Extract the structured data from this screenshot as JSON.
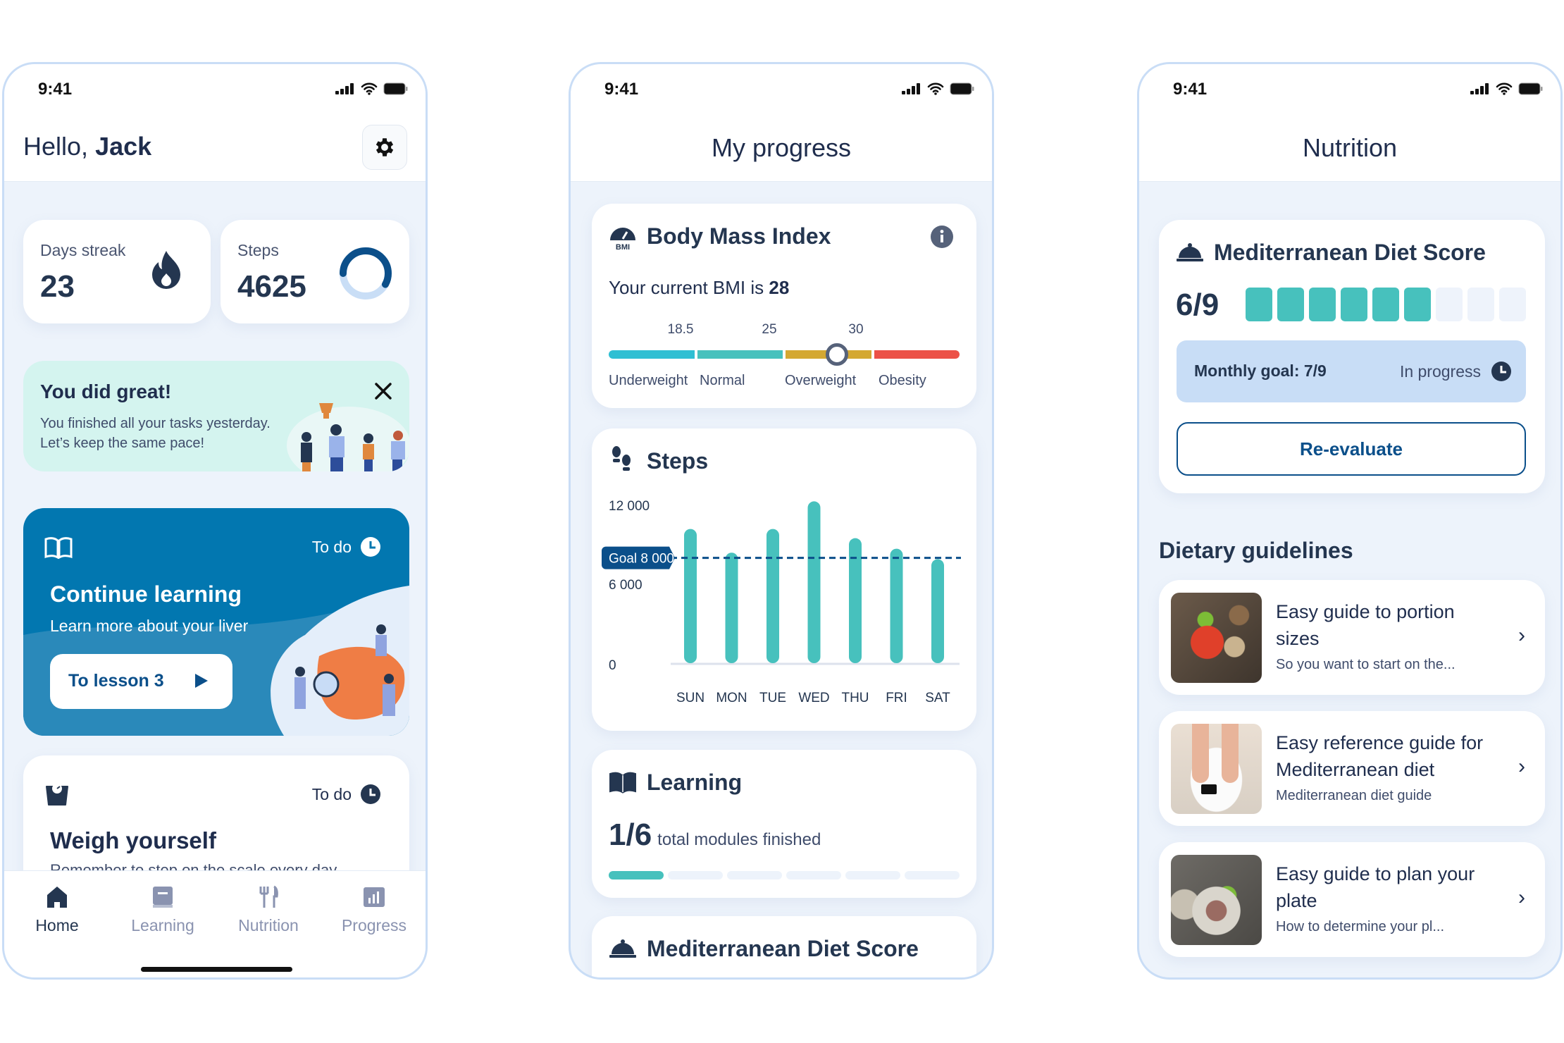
{
  "status_bar": {
    "time": "9:41"
  },
  "colors": {
    "primary": "#0b4f8a",
    "teal": "#47c1bd",
    "navy": "#243650",
    "learning_card": "#0277b0",
    "banner": "#d4f4ef"
  },
  "home": {
    "greeting": "Hello,",
    "name": "Jack",
    "settings_icon": "gear-icon",
    "streak": {
      "label": "Days streak",
      "value": "23",
      "icon": "flame-icon"
    },
    "steps": {
      "label": "Steps",
      "value": "4625",
      "progress": 0.58
    },
    "banner": {
      "title": "You did great!",
      "line1": "You finished all your tasks yesterday.",
      "line2": "Let’s keep the same pace!"
    },
    "learning_card": {
      "status": "To do",
      "title": "Continue learning",
      "subtitle": "Learn more about your liver",
      "button": "To lesson 3"
    },
    "weigh_card": {
      "status": "To do",
      "title": "Weigh yourself",
      "subtitle": "Remember to step on the scale every day"
    },
    "nav": [
      {
        "label": "Home",
        "icon": "home-icon",
        "active": true
      },
      {
        "label": "Learning",
        "icon": "book-icon"
      },
      {
        "label": "Nutrition",
        "icon": "fork-knife-icon"
      },
      {
        "label": "Progress",
        "icon": "chart-icon"
      }
    ]
  },
  "progress": {
    "title": "My progress",
    "bmi": {
      "title": "Body Mass Index",
      "current_prefix": "Your current BMI is",
      "current_value": "28",
      "value": 28,
      "thresholds": [
        "18.5",
        "25",
        "30"
      ],
      "categories": [
        "Underweight",
        "Normal",
        "Overweight",
        "Obesity"
      ],
      "category_colors": [
        "#2fbfd3",
        "#47c1bd",
        "#d4a832",
        "#ec5147"
      ]
    },
    "steps_title": "Steps",
    "learning": {
      "title": "Learning",
      "count": "1/6",
      "label": "total modules finished",
      "completed": 1,
      "total": 6
    },
    "diet_title": "Mediterranean Diet Score"
  },
  "chart_data": {
    "type": "bar",
    "title": "Steps",
    "categories": [
      "SUN",
      "MON",
      "TUE",
      "WED",
      "THU",
      "FRI",
      "SAT"
    ],
    "values": [
      10200,
      8400,
      10200,
      12300,
      9500,
      8700,
      7900
    ],
    "yticks": [
      0,
      6000,
      12000
    ],
    "ytick_labels": [
      "0",
      "6 000",
      "12 000"
    ],
    "ylim": [
      0,
      12000
    ],
    "goal": {
      "label": "Goal 8 000",
      "value": 8000
    },
    "bar_color": "#47c1bd",
    "grid": false
  },
  "nutrition": {
    "title": "Nutrition",
    "score": {
      "title": "Mediterranean Diet Score",
      "value_label": "6/9",
      "value": 6,
      "max": 9,
      "goal_label": "Monthly goal: 7/9",
      "goal_status": "In progress",
      "button": "Re-evaluate"
    },
    "guidelines_title": "Dietary guidelines",
    "guidelines": [
      {
        "title": "Easy guide to portion sizes",
        "subtitle": "So you want to start on the..."
      },
      {
        "title": "Easy reference guide for Mediterranean diet",
        "subtitle": "Mediterranean diet guide"
      },
      {
        "title": "Easy guide to plan your plate",
        "subtitle": "How to determine your pl..."
      }
    ]
  }
}
